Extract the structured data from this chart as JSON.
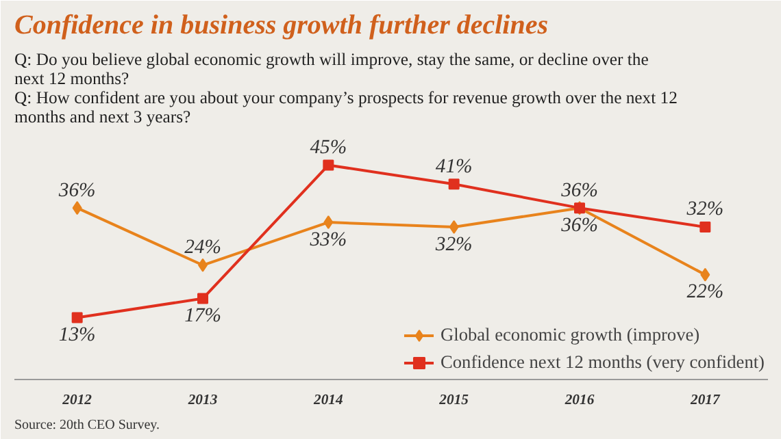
{
  "chart_data": {
    "type": "line",
    "title": "Confidence in business growth further declines",
    "subtitle": "Q: Do you believe global economic growth will improve, stay the same, or decline over the next 12 months?\nQ: How confident are you about your company’s prospects for revenue growth over the next 12 months and next 3 years?",
    "categories": [
      "2012",
      "2013",
      "2014",
      "2015",
      "2016",
      "2017"
    ],
    "series": [
      {
        "name": "Global economic growth (improve)",
        "color": "#e8831c",
        "marker": "diamond",
        "values": [
          36,
          24,
          33,
          32,
          36,
          22
        ],
        "value_labels": [
          "36%",
          "24%",
          "33%",
          "32%",
          "36%",
          "22%"
        ]
      },
      {
        "name": "Confidence next 12 months (very confident)",
        "color": "#e0301e",
        "marker": "square",
        "values": [
          13,
          17,
          45,
          41,
          36,
          32
        ],
        "value_labels": [
          "13%",
          "17%",
          "45%",
          "41%",
          "36%",
          "32%"
        ]
      }
    ],
    "legend": "bottom right",
    "grid": false,
    "annotations": [
      "Source: 20th CEO Survey."
    ]
  }
}
